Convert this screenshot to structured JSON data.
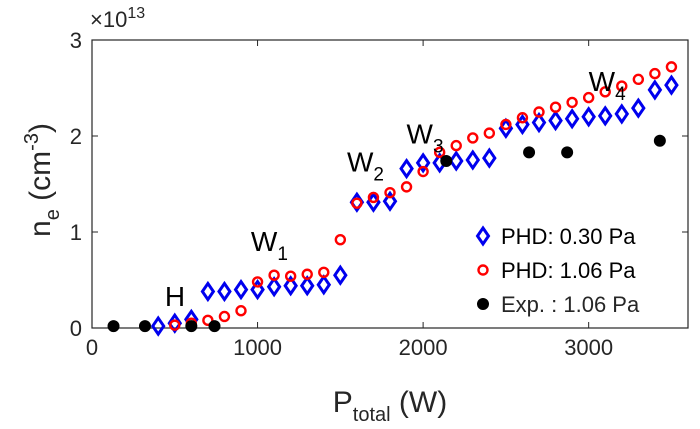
{
  "chart_data": {
    "type": "scatter",
    "title": "",
    "xlabel": {
      "main": "P",
      "sub": "total",
      "unit": " (W)"
    },
    "ylabel": {
      "main": "n",
      "sub": "e",
      "unit_open": " (cm",
      "unit_sup": "-3",
      "unit_close": ")"
    },
    "y_multiplier": {
      "prefix": "×10",
      "exponent": "13"
    },
    "xlim": [
      0,
      3600
    ],
    "ylim": [
      0,
      3
    ],
    "xticks": [
      0,
      1000,
      2000,
      3000
    ],
    "yticks": [
      0,
      1,
      2,
      3
    ],
    "grid": false,
    "legend_position": "bottom-right",
    "series": [
      {
        "name": "PHD: 0.30 Pa",
        "marker": "diamond",
        "color": "#0000ee",
        "x": [
          400,
          500,
          600,
          700,
          800,
          900,
          1000,
          1100,
          1200,
          1300,
          1400,
          1500,
          1600,
          1700,
          1800,
          1900,
          2000,
          2100,
          2200,
          2300,
          2400,
          2500,
          2600,
          2700,
          2800,
          2900,
          3000,
          3100,
          3200,
          3300,
          3400,
          3500
        ],
        "y": [
          0.02,
          0.05,
          0.09,
          0.38,
          0.38,
          0.4,
          0.4,
          0.43,
          0.44,
          0.44,
          0.45,
          0.55,
          1.31,
          1.31,
          1.32,
          1.66,
          1.72,
          1.72,
          1.74,
          1.75,
          1.77,
          2.08,
          2.12,
          2.14,
          2.16,
          2.18,
          2.2,
          2.21,
          2.23,
          2.29,
          2.48,
          2.53
        ]
      },
      {
        "name": "PHD: 1.06 Pa",
        "marker": "circle-open",
        "color": "#ff0000",
        "x": [
          500,
          600,
          700,
          800,
          900,
          1000,
          1100,
          1200,
          1300,
          1400,
          1500,
          1600,
          1700,
          1800,
          1900,
          2000,
          2100,
          2200,
          2300,
          2400,
          2500,
          2600,
          2700,
          2800,
          2900,
          3000,
          3100,
          3200,
          3300,
          3400,
          3500
        ],
        "y": [
          0.03,
          0.05,
          0.08,
          0.12,
          0.18,
          0.48,
          0.55,
          0.54,
          0.56,
          0.58,
          0.92,
          1.3,
          1.36,
          1.41,
          1.47,
          1.63,
          1.83,
          1.9,
          1.98,
          2.03,
          2.12,
          2.19,
          2.25,
          2.3,
          2.35,
          2.4,
          2.46,
          2.52,
          2.59,
          2.65,
          2.72
        ]
      },
      {
        "name": "Exp. : 1.06 Pa",
        "marker": "circle-filled",
        "color": "#000000",
        "x": [
          130,
          320,
          600,
          740,
          2140,
          2640,
          2870,
          3430
        ],
        "y": [
          0.02,
          0.02,
          0.02,
          0.02,
          1.74,
          1.83,
          1.83,
          1.95
        ]
      }
    ],
    "annotations": [
      {
        "main": "H",
        "sub": "",
        "x": 440,
        "y": 0.23
      },
      {
        "main": "W",
        "sub": "1",
        "x": 960,
        "y": 0.8
      },
      {
        "main": "W",
        "sub": "2",
        "x": 1540,
        "y": 1.63
      },
      {
        "main": "W",
        "sub": "3",
        "x": 1900,
        "y": 1.92
      },
      {
        "main": "W",
        "sub": "4",
        "x": 3000,
        "y": 2.47
      }
    ]
  }
}
